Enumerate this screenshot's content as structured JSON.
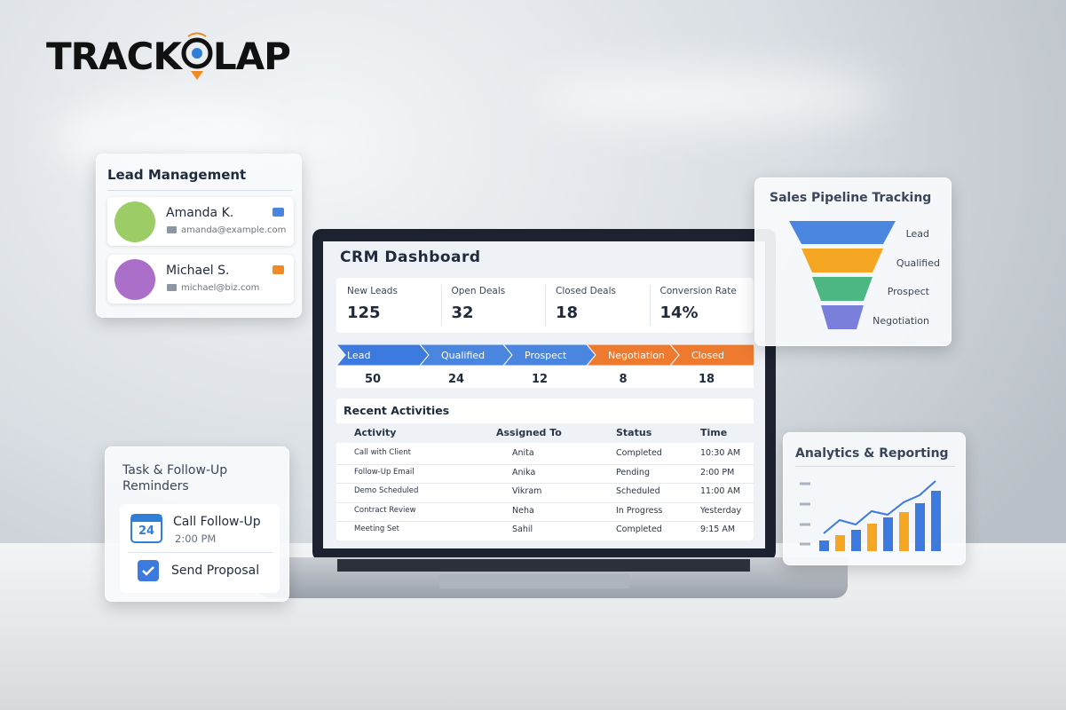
{
  "brand": {
    "left": "TRACK",
    "right": "LAP"
  },
  "lead_management": {
    "title": "Lead Management",
    "contacts": [
      {
        "name": "Amanda K.",
        "email": "amanda@example.com"
      },
      {
        "name": "Michael S.",
        "email": "michael@biz.com"
      }
    ]
  },
  "dashboard": {
    "title": "CRM Dashboard",
    "stats": [
      {
        "label": "New Leads",
        "value": "125"
      },
      {
        "label": "Open Deals",
        "value": "32"
      },
      {
        "label": "Closed Deals",
        "value": "18"
      },
      {
        "label": "Conversion Rate",
        "value": "14%"
      }
    ],
    "pipeline": [
      {
        "stage": "Lead",
        "count": "50"
      },
      {
        "stage": "Qualified",
        "count": "24"
      },
      {
        "stage": "Prospect",
        "count": "12"
      },
      {
        "stage": "Negotiation",
        "count": "8"
      },
      {
        "stage": "Closed",
        "count": "18"
      }
    ],
    "activities": {
      "title": "Recent Activities",
      "headers": [
        "Activity",
        "Assigned To",
        "Status",
        "Time"
      ],
      "rows": [
        [
          "Call with Client",
          "Anita",
          "Completed",
          "10:30 AM"
        ],
        [
          "Follow-Up Email",
          "Anika",
          "Pending",
          "2:00 PM"
        ],
        [
          "Demo Scheduled",
          "Vikram",
          "Scheduled",
          "11:00 AM"
        ],
        [
          "Contract Review",
          "Neha",
          "In Progress",
          "Yesterday"
        ],
        [
          "Meeting Set",
          "Sahil",
          "Completed",
          "9:15 AM"
        ]
      ]
    }
  },
  "sales_pipeline": {
    "title": "Sales Pipeline Tracking",
    "stages": [
      "Lead",
      "Qualified",
      "Prospect",
      "Negotiation"
    ]
  },
  "analytics": {
    "title": "Analytics & Reporting"
  },
  "tasks": {
    "title": "Task & Follow-Up Reminders",
    "items": [
      {
        "day": "24",
        "title": "Call Follow-Up",
        "time": "2:00 PM"
      },
      {
        "title": "Send Proposal"
      }
    ]
  }
}
